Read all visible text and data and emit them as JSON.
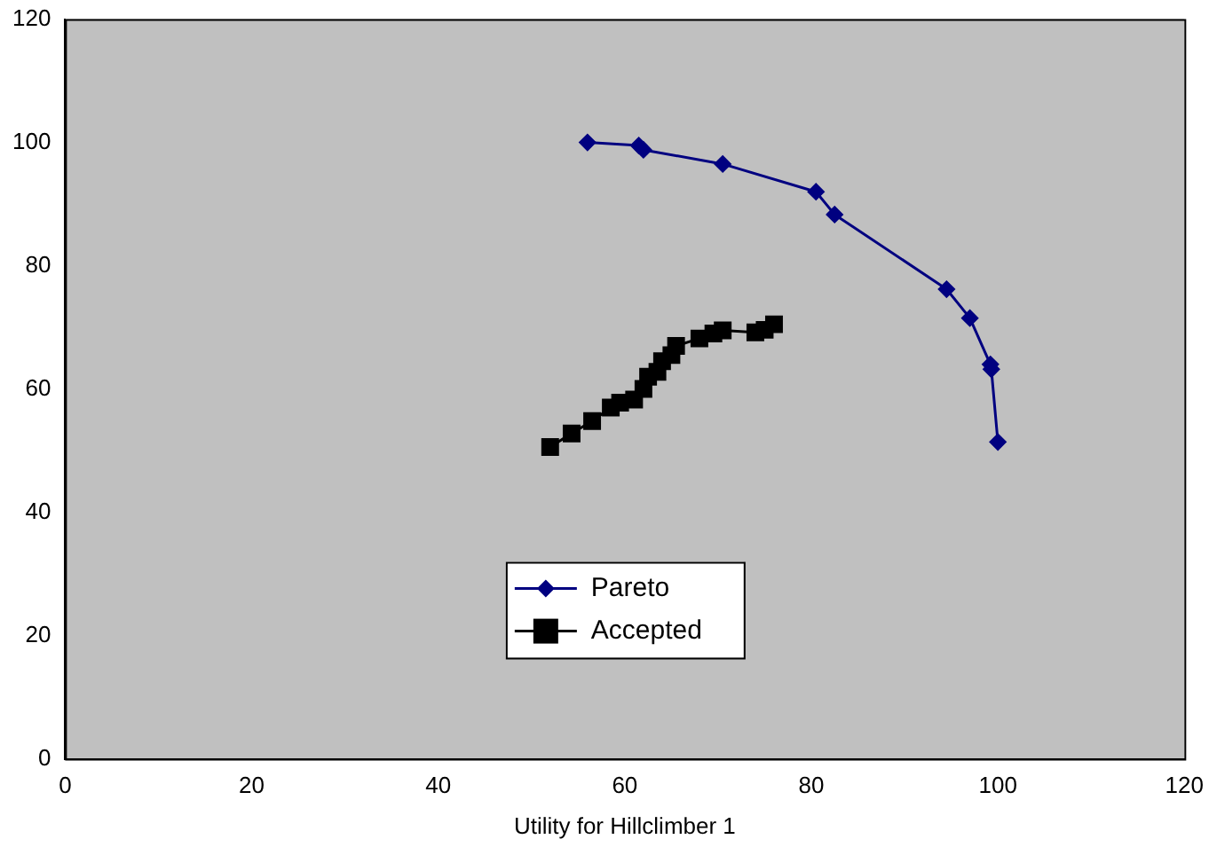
{
  "chart_data": {
    "type": "line",
    "xlabel": "Utility for Hillclimber 1",
    "xlim": [
      0,
      120
    ],
    "xticks": [
      0,
      20,
      40,
      60,
      80,
      100,
      120
    ],
    "ylim": [
      0,
      120
    ],
    "yticks": [
      0,
      20,
      40,
      60,
      80,
      100,
      120
    ],
    "grid": false,
    "legend": "bottom",
    "line_style": "solid",
    "series": [
      {
        "name": "Pareto",
        "color": "#000080",
        "marker": "diamond",
        "x": [
          56,
          61.5,
          62,
          70.5,
          80.5,
          82.5,
          94.5,
          97,
          99.2,
          99.3,
          100
        ],
        "values": [
          100,
          99.5,
          98.8,
          96.5,
          92,
          88.3,
          76.2,
          71.5,
          64,
          63.2,
          51.4
        ]
      },
      {
        "name": "Accepted",
        "color": "#000000",
        "marker": "square",
        "x": [
          52,
          54.3,
          56.5,
          58.5,
          59.5,
          61,
          62,
          62.5,
          63.5,
          64,
          65,
          65.5,
          68,
          69.5,
          70.5,
          74,
          75,
          76
        ],
        "values": [
          50.6,
          52.8,
          54.8,
          57,
          57.8,
          58.3,
          60,
          62,
          62.8,
          64.5,
          65.5,
          67,
          68.2,
          69,
          69.5,
          69.2,
          69.6,
          70.5
        ]
      }
    ]
  }
}
